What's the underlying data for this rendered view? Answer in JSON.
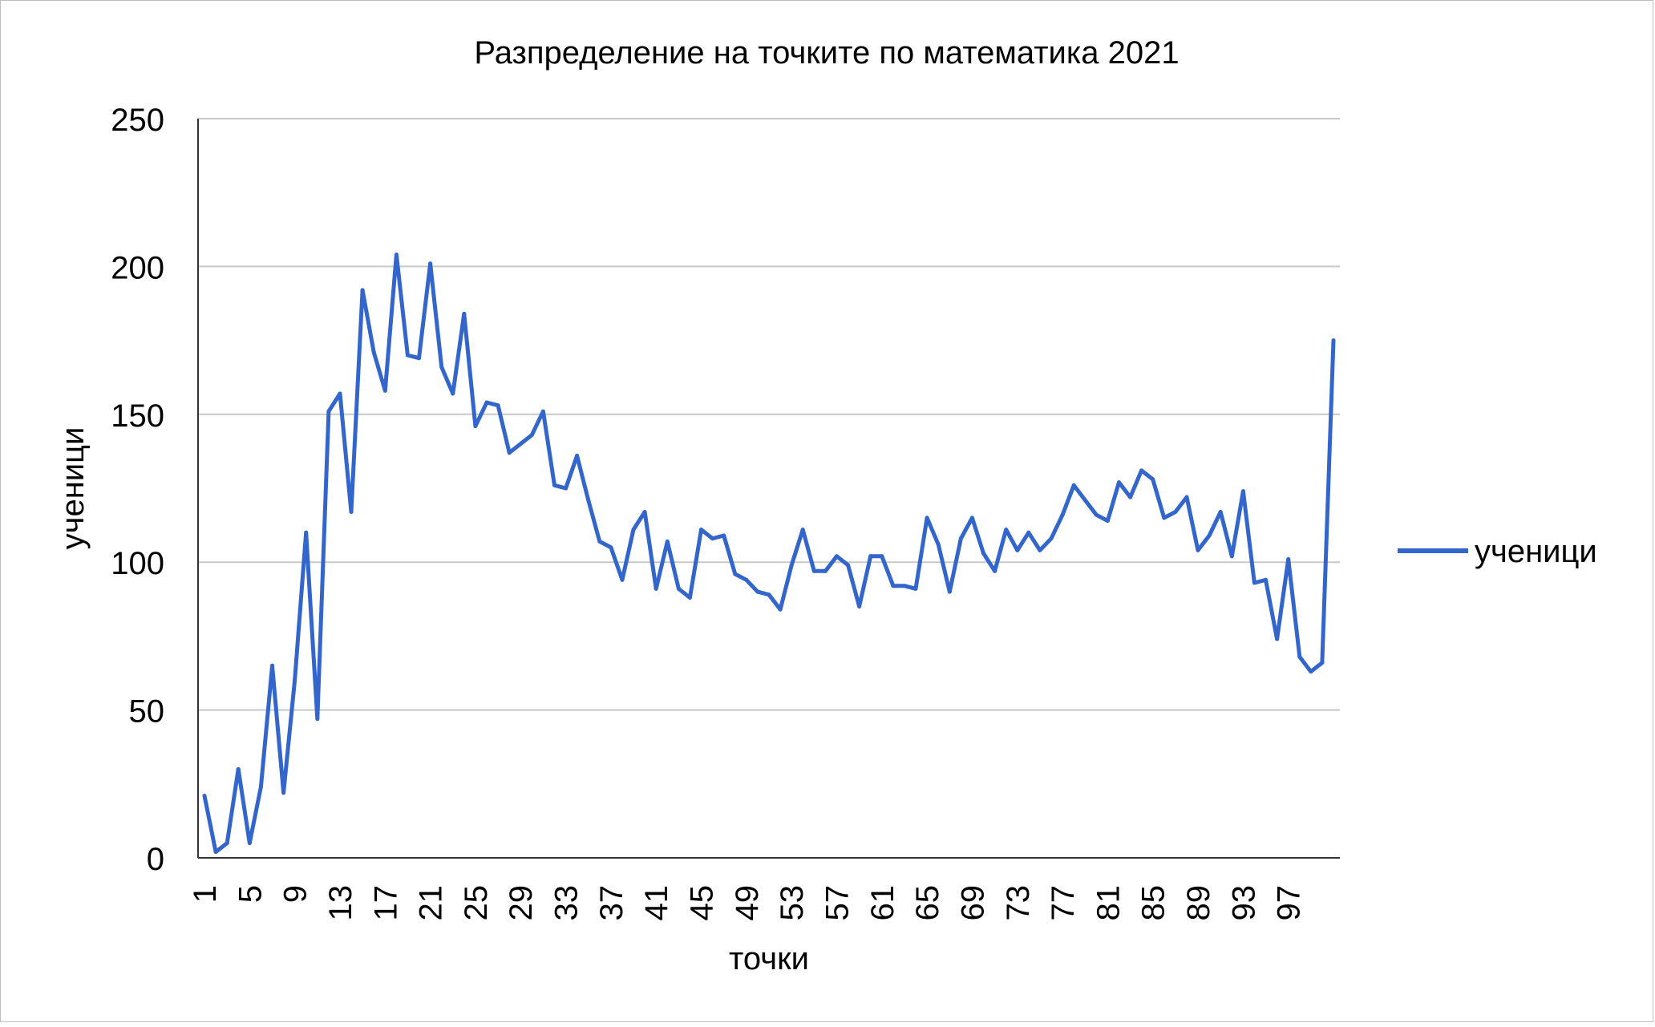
{
  "chart_data": {
    "type": "line",
    "title": "Разпределение на точките по математика 2021",
    "xlabel": "точки",
    "ylabel": "ученици",
    "ylim": [
      0,
      250
    ],
    "yticks": [
      0,
      50,
      100,
      150,
      200,
      250
    ],
    "xtick_labels": [
      "1",
      "5",
      "9",
      "13",
      "17",
      "21",
      "25",
      "29",
      "33",
      "37",
      "41",
      "45",
      "49",
      "53",
      "57",
      "61",
      "65",
      "69",
      "73",
      "77",
      "81",
      "85",
      "89",
      "93",
      "97"
    ],
    "grid": "horizontal",
    "legend": "right",
    "color": "#3366CC",
    "x": [
      1,
      2,
      3,
      4,
      5,
      6,
      7,
      8,
      9,
      10,
      11,
      12,
      13,
      14,
      15,
      16,
      17,
      18,
      19,
      20,
      21,
      22,
      23,
      24,
      25,
      26,
      27,
      28,
      29,
      30,
      31,
      32,
      33,
      34,
      35,
      36,
      37,
      38,
      39,
      40,
      41,
      42,
      43,
      44,
      45,
      46,
      47,
      48,
      49,
      50,
      51,
      52,
      53,
      54,
      55,
      56,
      57,
      58,
      59,
      60,
      61,
      62,
      63,
      64,
      65,
      66,
      67,
      68,
      69,
      70,
      71,
      72,
      73,
      74,
      75,
      76,
      77,
      78,
      79,
      80,
      81,
      82,
      83,
      84,
      85,
      86,
      87,
      88,
      89,
      90,
      91,
      92,
      93,
      94,
      95,
      96,
      97,
      98,
      99,
      100,
      101
    ],
    "series": [
      {
        "name": "ученици",
        "values": [
          21,
          2,
          5,
          30,
          5,
          24,
          65,
          22,
          60,
          110,
          47,
          151,
          157,
          117,
          192,
          171,
          158,
          204,
          170,
          169,
          201,
          166,
          157,
          184,
          146,
          154,
          153,
          137,
          140,
          143,
          151,
          126,
          125,
          136,
          121,
          107,
          105,
          94,
          111,
          117,
          91,
          107,
          91,
          88,
          111,
          108,
          109,
          96,
          94,
          90,
          89,
          84,
          99,
          111,
          97,
          97,
          102,
          99,
          85,
          102,
          102,
          92,
          92,
          91,
          115,
          106,
          90,
          108,
          115,
          103,
          97,
          111,
          104,
          110,
          104,
          108,
          116,
          126,
          121,
          116,
          114,
          127,
          122,
          131,
          128,
          115,
          117,
          122,
          104,
          109,
          117,
          102,
          124,
          93,
          94,
          74,
          101,
          68,
          63,
          66,
          175
        ]
      }
    ]
  }
}
